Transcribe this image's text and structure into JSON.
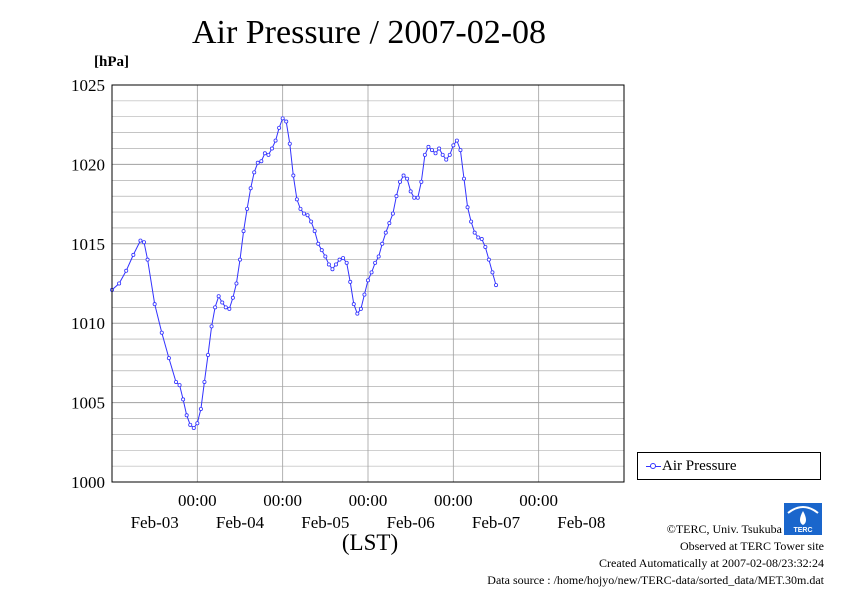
{
  "title": "Air Pressure / 2007-02-08",
  "unit_label": "[hPa]",
  "x_axis_label": "(LST)",
  "legend": {
    "series_name": "Air Pressure"
  },
  "footer": {
    "copyright": "©TERC, Univ. Tsukuba",
    "observed": "Observed at TERC Tower site",
    "created": "Created Automatically at 2007-02-08/23:32:24",
    "source": "Data source : /home/hojyo/new/TERC-data/sorted_data/MET.30m.dat"
  },
  "logo_text": "TERC",
  "colors": {
    "series": "#3333ff",
    "grid": "#a0a0a0",
    "logo": "#1a66cc"
  },
  "chart_data": {
    "type": "line",
    "title": "Air Pressure / 2007-02-08",
    "xlabel": "(LST)",
    "ylabel": "[hPa]",
    "x_unit": "hours since 2007-02-02 00:00 LST",
    "xlim": [
      14,
      158
    ],
    "ylim": [
      1000,
      1025
    ],
    "y_ticks": [
      1000,
      1005,
      1010,
      1015,
      1020,
      1025
    ],
    "x_tick_labels": [
      {
        "x": 38,
        "time": "00:00",
        "date": "Feb-03"
      },
      {
        "x": 62,
        "time": "00:00",
        "date": "Feb-04"
      },
      {
        "x": 86,
        "time": "00:00",
        "date": "Feb-05"
      },
      {
        "x": 110,
        "time": "00:00",
        "date": "Feb-06"
      },
      {
        "x": 134,
        "time": "00:00",
        "date": "Feb-07"
      },
      {
        "x": 158,
        "time": "",
        "date": "Feb-08"
      }
    ],
    "grid": true,
    "legend_position": "right",
    "series": [
      {
        "name": "Air Pressure",
        "points": [
          [
            14,
            1012.1
          ],
          [
            16,
            1012.5
          ],
          [
            18,
            1013.3
          ],
          [
            20,
            1014.3
          ],
          [
            22,
            1015.2
          ],
          [
            23,
            1015.1
          ],
          [
            24,
            1014.0
          ],
          [
            26,
            1011.2
          ],
          [
            28,
            1009.4
          ],
          [
            30,
            1007.8
          ],
          [
            32,
            1006.3
          ],
          [
            33,
            1006.1
          ],
          [
            34,
            1005.2
          ],
          [
            35,
            1004.2
          ],
          [
            36,
            1003.6
          ],
          [
            37,
            1003.4
          ],
          [
            38,
            1003.7
          ],
          [
            39,
            1004.6
          ],
          [
            40,
            1006.3
          ],
          [
            41,
            1008.0
          ],
          [
            42,
            1009.8
          ],
          [
            43,
            1011.0
          ],
          [
            44,
            1011.7
          ],
          [
            45,
            1011.3
          ],
          [
            46,
            1011.0
          ],
          [
            47,
            1010.9
          ],
          [
            48,
            1011.6
          ],
          [
            49,
            1012.5
          ],
          [
            50,
            1014.0
          ],
          [
            51,
            1015.8
          ],
          [
            52,
            1017.2
          ],
          [
            53,
            1018.5
          ],
          [
            54,
            1019.5
          ],
          [
            55,
            1020.1
          ],
          [
            56,
            1020.2
          ],
          [
            57,
            1020.7
          ],
          [
            58,
            1020.6
          ],
          [
            59,
            1021.0
          ],
          [
            60,
            1021.5
          ],
          [
            61,
            1022.3
          ],
          [
            62,
            1022.9
          ],
          [
            63,
            1022.7
          ],
          [
            64,
            1021.3
          ],
          [
            65,
            1019.3
          ],
          [
            66,
            1017.8
          ],
          [
            67,
            1017.2
          ],
          [
            68,
            1016.9
          ],
          [
            69,
            1016.8
          ],
          [
            70,
            1016.4
          ],
          [
            71,
            1015.8
          ],
          [
            72,
            1015.0
          ],
          [
            73,
            1014.6
          ],
          [
            74,
            1014.2
          ],
          [
            75,
            1013.7
          ],
          [
            76,
            1013.4
          ],
          [
            77,
            1013.7
          ],
          [
            78,
            1014.0
          ],
          [
            79,
            1014.1
          ],
          [
            80,
            1013.8
          ],
          [
            81,
            1012.6
          ],
          [
            82,
            1011.2
          ],
          [
            83,
            1010.6
          ],
          [
            84,
            1010.9
          ],
          [
            85,
            1011.8
          ],
          [
            86,
            1012.7
          ],
          [
            87,
            1013.2
          ],
          [
            88,
            1013.8
          ],
          [
            89,
            1014.2
          ],
          [
            90,
            1015.0
          ],
          [
            91,
            1015.7
          ],
          [
            92,
            1016.3
          ],
          [
            93,
            1016.9
          ],
          [
            94,
            1018.0
          ],
          [
            95,
            1018.9
          ],
          [
            96,
            1019.3
          ],
          [
            97,
            1019.1
          ],
          [
            98,
            1018.3
          ],
          [
            99,
            1017.9
          ],
          [
            100,
            1017.9
          ],
          [
            101,
            1018.9
          ],
          [
            102,
            1020.6
          ],
          [
            103,
            1021.1
          ],
          [
            104,
            1020.9
          ],
          [
            105,
            1020.7
          ],
          [
            106,
            1021.0
          ],
          [
            107,
            1020.6
          ],
          [
            108,
            1020.3
          ],
          [
            109,
            1020.6
          ],
          [
            110,
            1021.2
          ],
          [
            111,
            1021.5
          ],
          [
            112,
            1020.9
          ],
          [
            113,
            1019.1
          ],
          [
            114,
            1017.3
          ],
          [
            115,
            1016.4
          ],
          [
            116,
            1015.7
          ],
          [
            117,
            1015.4
          ],
          [
            118,
            1015.3
          ],
          [
            119,
            1014.8
          ],
          [
            120,
            1014.0
          ],
          [
            121,
            1013.2
          ],
          [
            122,
            1012.4
          ]
        ]
      }
    ]
  }
}
